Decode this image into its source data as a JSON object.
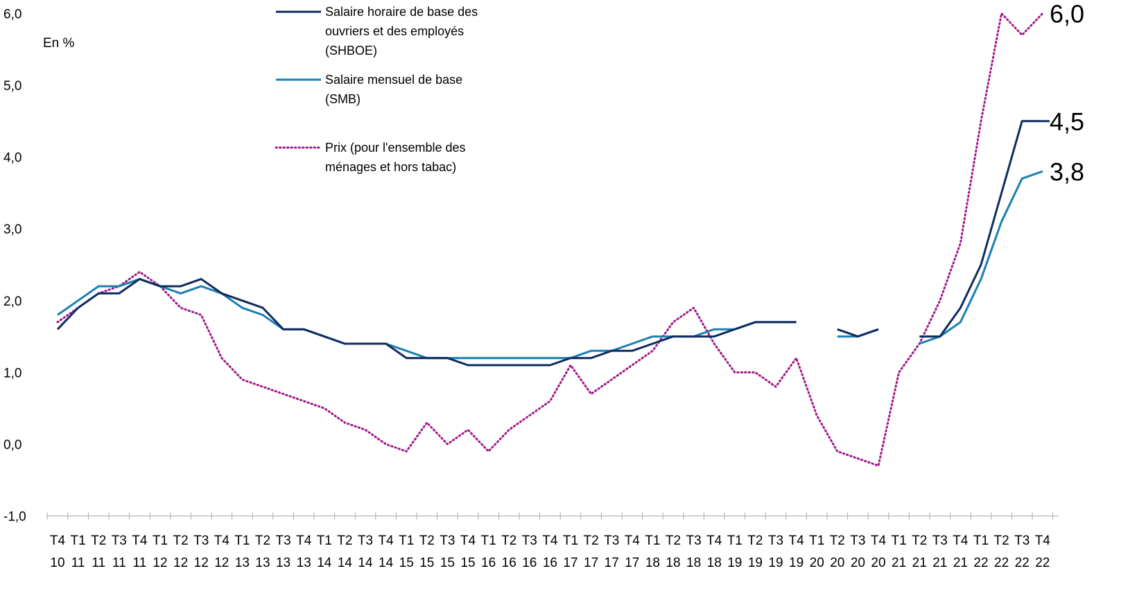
{
  "chart_data": {
    "type": "line",
    "unit_label": "En %",
    "ylim": [
      -1,
      6
    ],
    "yticks": [
      "-1,0",
      "0,0",
      "1,0",
      "2,0",
      "3,0",
      "4,0",
      "5,0",
      "6,0"
    ],
    "categories": [
      [
        "T4",
        "10"
      ],
      [
        "T1",
        "11"
      ],
      [
        "T2",
        "11"
      ],
      [
        "T3",
        "11"
      ],
      [
        "T4",
        "11"
      ],
      [
        "T1",
        "12"
      ],
      [
        "T2",
        "12"
      ],
      [
        "T3",
        "12"
      ],
      [
        "T4",
        "12"
      ],
      [
        "T1",
        "13"
      ],
      [
        "T2",
        "13"
      ],
      [
        "T3",
        "13"
      ],
      [
        "T4",
        "13"
      ],
      [
        "T1",
        "14"
      ],
      [
        "T2",
        "14"
      ],
      [
        "T3",
        "14"
      ],
      [
        "T4",
        "14"
      ],
      [
        "T1",
        "15"
      ],
      [
        "T2",
        "15"
      ],
      [
        "T3",
        "15"
      ],
      [
        "T4",
        "15"
      ],
      [
        "T1",
        "16"
      ],
      [
        "T2",
        "16"
      ],
      [
        "T3",
        "16"
      ],
      [
        "T4",
        "16"
      ],
      [
        "T1",
        "17"
      ],
      [
        "T2",
        "17"
      ],
      [
        "T3",
        "17"
      ],
      [
        "T4",
        "17"
      ],
      [
        "T1",
        "18"
      ],
      [
        "T2",
        "18"
      ],
      [
        "T3",
        "18"
      ],
      [
        "T4",
        "18"
      ],
      [
        "T1",
        "19"
      ],
      [
        "T2",
        "19"
      ],
      [
        "T3",
        "19"
      ],
      [
        "T4",
        "19"
      ],
      [
        "T1",
        "20"
      ],
      [
        "T2",
        "20"
      ],
      [
        "T3",
        "20"
      ],
      [
        "T4",
        "20"
      ],
      [
        "T1",
        "21"
      ],
      [
        "T2",
        "21"
      ],
      [
        "T3",
        "21"
      ],
      [
        "T4",
        "21"
      ],
      [
        "T1",
        "22"
      ],
      [
        "T2",
        "22"
      ],
      [
        "T3",
        "22"
      ],
      [
        "T4",
        "22"
      ]
    ],
    "series": [
      {
        "name": "Salaire horaire de base des ouvriers et des employés (SHBOE)",
        "legend_lines": [
          "Salaire horaire de base des",
          "ouvriers et des employés",
          "(SHBOE)"
        ],
        "color": "#0d2b5e",
        "style": "solid",
        "end_label": "4,5",
        "values": [
          1.6,
          1.9,
          2.1,
          2.1,
          2.3,
          2.2,
          2.2,
          2.3,
          2.1,
          2.0,
          1.9,
          1.6,
          1.6,
          1.5,
          1.4,
          1.4,
          1.4,
          1.2,
          1.2,
          1.2,
          1.1,
          1.1,
          1.1,
          1.1,
          1.1,
          1.2,
          1.2,
          1.3,
          1.3,
          1.4,
          1.5,
          1.5,
          1.5,
          1.6,
          1.7,
          1.7,
          1.7,
          null,
          1.6,
          1.5,
          1.6,
          null,
          1.5,
          1.5,
          1.9,
          2.5,
          3.5,
          4.5,
          4.5
        ]
      },
      {
        "name": "Salaire mensuel de base (SMB)",
        "legend_lines": [
          "Salaire mensuel de base",
          "(SMB)"
        ],
        "color": "#1a7fb0",
        "style": "solid",
        "end_label": "3,8",
        "values": [
          1.8,
          2.0,
          2.2,
          2.2,
          2.3,
          2.2,
          2.1,
          2.2,
          2.1,
          1.9,
          1.8,
          1.6,
          1.6,
          1.5,
          1.4,
          1.4,
          1.4,
          1.3,
          1.2,
          1.2,
          1.2,
          1.2,
          1.2,
          1.2,
          1.2,
          1.2,
          1.3,
          1.3,
          1.4,
          1.5,
          1.5,
          1.5,
          1.6,
          1.6,
          1.7,
          1.7,
          1.7,
          null,
          1.5,
          1.5,
          1.6,
          null,
          1.4,
          1.5,
          1.7,
          2.3,
          3.1,
          3.7,
          3.8
        ]
      },
      {
        "name": "Prix (pour l'ensemble des ménages et hors tabac)",
        "legend_lines": [
          "Prix (pour l'ensemble des",
          "ménages et hors tabac)"
        ],
        "color": "#a3168a",
        "style": "dotted",
        "end_label": "6,0",
        "values": [
          1.7,
          1.9,
          2.1,
          2.2,
          2.4,
          2.2,
          1.9,
          1.8,
          1.2,
          0.9,
          0.8,
          0.7,
          0.6,
          0.5,
          0.3,
          0.2,
          0.0,
          -0.1,
          0.3,
          0.0,
          0.2,
          -0.1,
          0.2,
          0.4,
          0.6,
          1.1,
          0.7,
          0.9,
          1.1,
          1.3,
          1.7,
          1.9,
          1.4,
          1.0,
          1.0,
          0.8,
          1.2,
          0.4,
          -0.1,
          -0.2,
          -0.3,
          1.0,
          1.4,
          2.0,
          2.8,
          4.5,
          6.0,
          5.7,
          6.0
        ]
      }
    ],
    "legend_position": "top-center",
    "grid": false
  }
}
